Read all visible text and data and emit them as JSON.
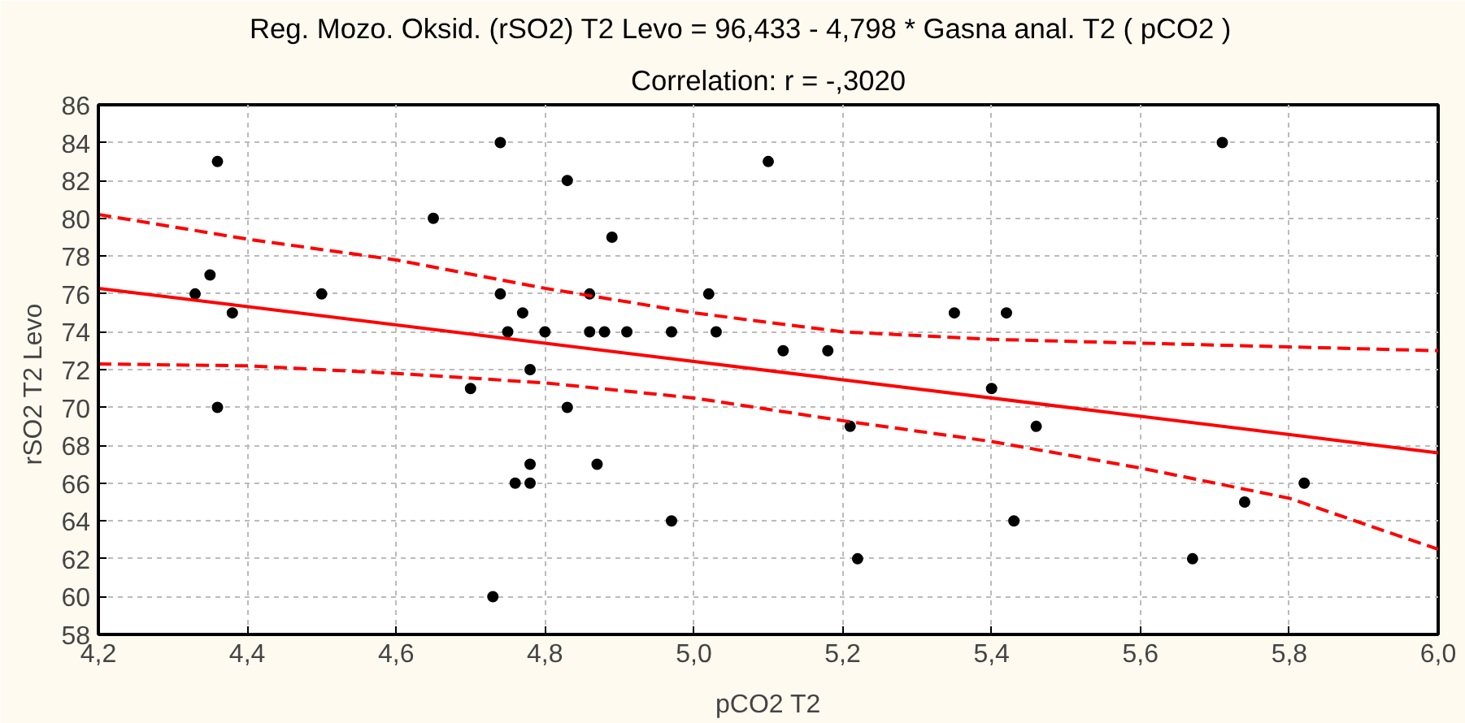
{
  "chart_data": {
    "type": "scatter",
    "title": "Reg. Mozo. Oksid. (rSO2)    T2  Levo = 96,433 - 4,798  * Gasna anal.  T2  ( pCO2 )",
    "subtitle": "Correlation: r = -,3020",
    "xlabel": "pCO2 T2",
    "ylabel": "rSO2    T2  Levo",
    "xlim": [
      4.2,
      6.0
    ],
    "ylim": [
      58,
      86
    ],
    "xticks": [
      {
        "value": 4.2,
        "label": "4,2"
      },
      {
        "value": 4.4,
        "label": "4,4"
      },
      {
        "value": 4.6,
        "label": "4,6"
      },
      {
        "value": 4.8,
        "label": "4,8"
      },
      {
        "value": 5.0,
        "label": "5,0"
      },
      {
        "value": 5.2,
        "label": "5,2"
      },
      {
        "value": 5.4,
        "label": "5,4"
      },
      {
        "value": 5.6,
        "label": "5,6"
      },
      {
        "value": 5.8,
        "label": "5,8"
      },
      {
        "value": 6.0,
        "label": "6,0"
      }
    ],
    "yticks": [
      58,
      60,
      62,
      64,
      66,
      68,
      70,
      72,
      74,
      76,
      78,
      80,
      82,
      84,
      86
    ],
    "grid": true,
    "marker": "circle",
    "series": [
      {
        "color": "#000000",
        "x": [
          4.33,
          4.35,
          4.36,
          4.36,
          4.38,
          4.5,
          4.65,
          4.7,
          4.73,
          4.74,
          4.74,
          4.75,
          4.76,
          4.77,
          4.78,
          4.78,
          4.78,
          4.8,
          4.83,
          4.83,
          4.86,
          4.86,
          4.87,
          4.88,
          4.89,
          4.91,
          4.97,
          4.97,
          5.02,
          5.03,
          5.1,
          5.12,
          5.18,
          5.21,
          5.22,
          5.35,
          5.4,
          5.42,
          5.43,
          5.46,
          5.67,
          5.71,
          5.74,
          5.82
        ],
        "values": [
          76,
          77,
          83,
          70,
          75,
          76,
          80,
          71,
          60,
          84,
          76,
          74,
          66,
          75,
          67,
          66,
          72,
          74,
          82,
          70,
          76,
          74,
          67,
          74,
          79,
          74,
          74,
          64,
          76,
          74,
          83,
          73,
          73,
          69,
          62,
          75,
          71,
          75,
          64,
          69,
          62,
          84,
          65,
          66
        ]
      },
      {
        "type": "line",
        "color": "#ff0000",
        "line_style": "solid",
        "marker": "none",
        "x": [
          4.2,
          6.0
        ],
        "values": [
          76.3,
          67.6
        ]
      },
      {
        "type": "line",
        "color": "#ff0000",
        "line_style": "dashed",
        "marker": "none",
        "x": [
          4.2,
          4.4,
          4.6,
          4.8,
          5.0,
          5.2,
          5.4,
          5.6,
          5.8,
          6.0
        ],
        "values": [
          80.2,
          78.9,
          77.8,
          76.3,
          75.0,
          74.0,
          73.6,
          73.4,
          73.2,
          73.0
        ]
      },
      {
        "type": "line",
        "color": "#ff0000",
        "line_style": "dashed",
        "marker": "none",
        "x": [
          4.2,
          4.4,
          4.6,
          4.8,
          5.0,
          5.2,
          5.4,
          5.6,
          5.8,
          6.0
        ],
        "values": [
          72.3,
          72.2,
          71.8,
          71.3,
          70.5,
          69.3,
          68.2,
          66.8,
          65.2,
          62.5
        ]
      }
    ]
  }
}
